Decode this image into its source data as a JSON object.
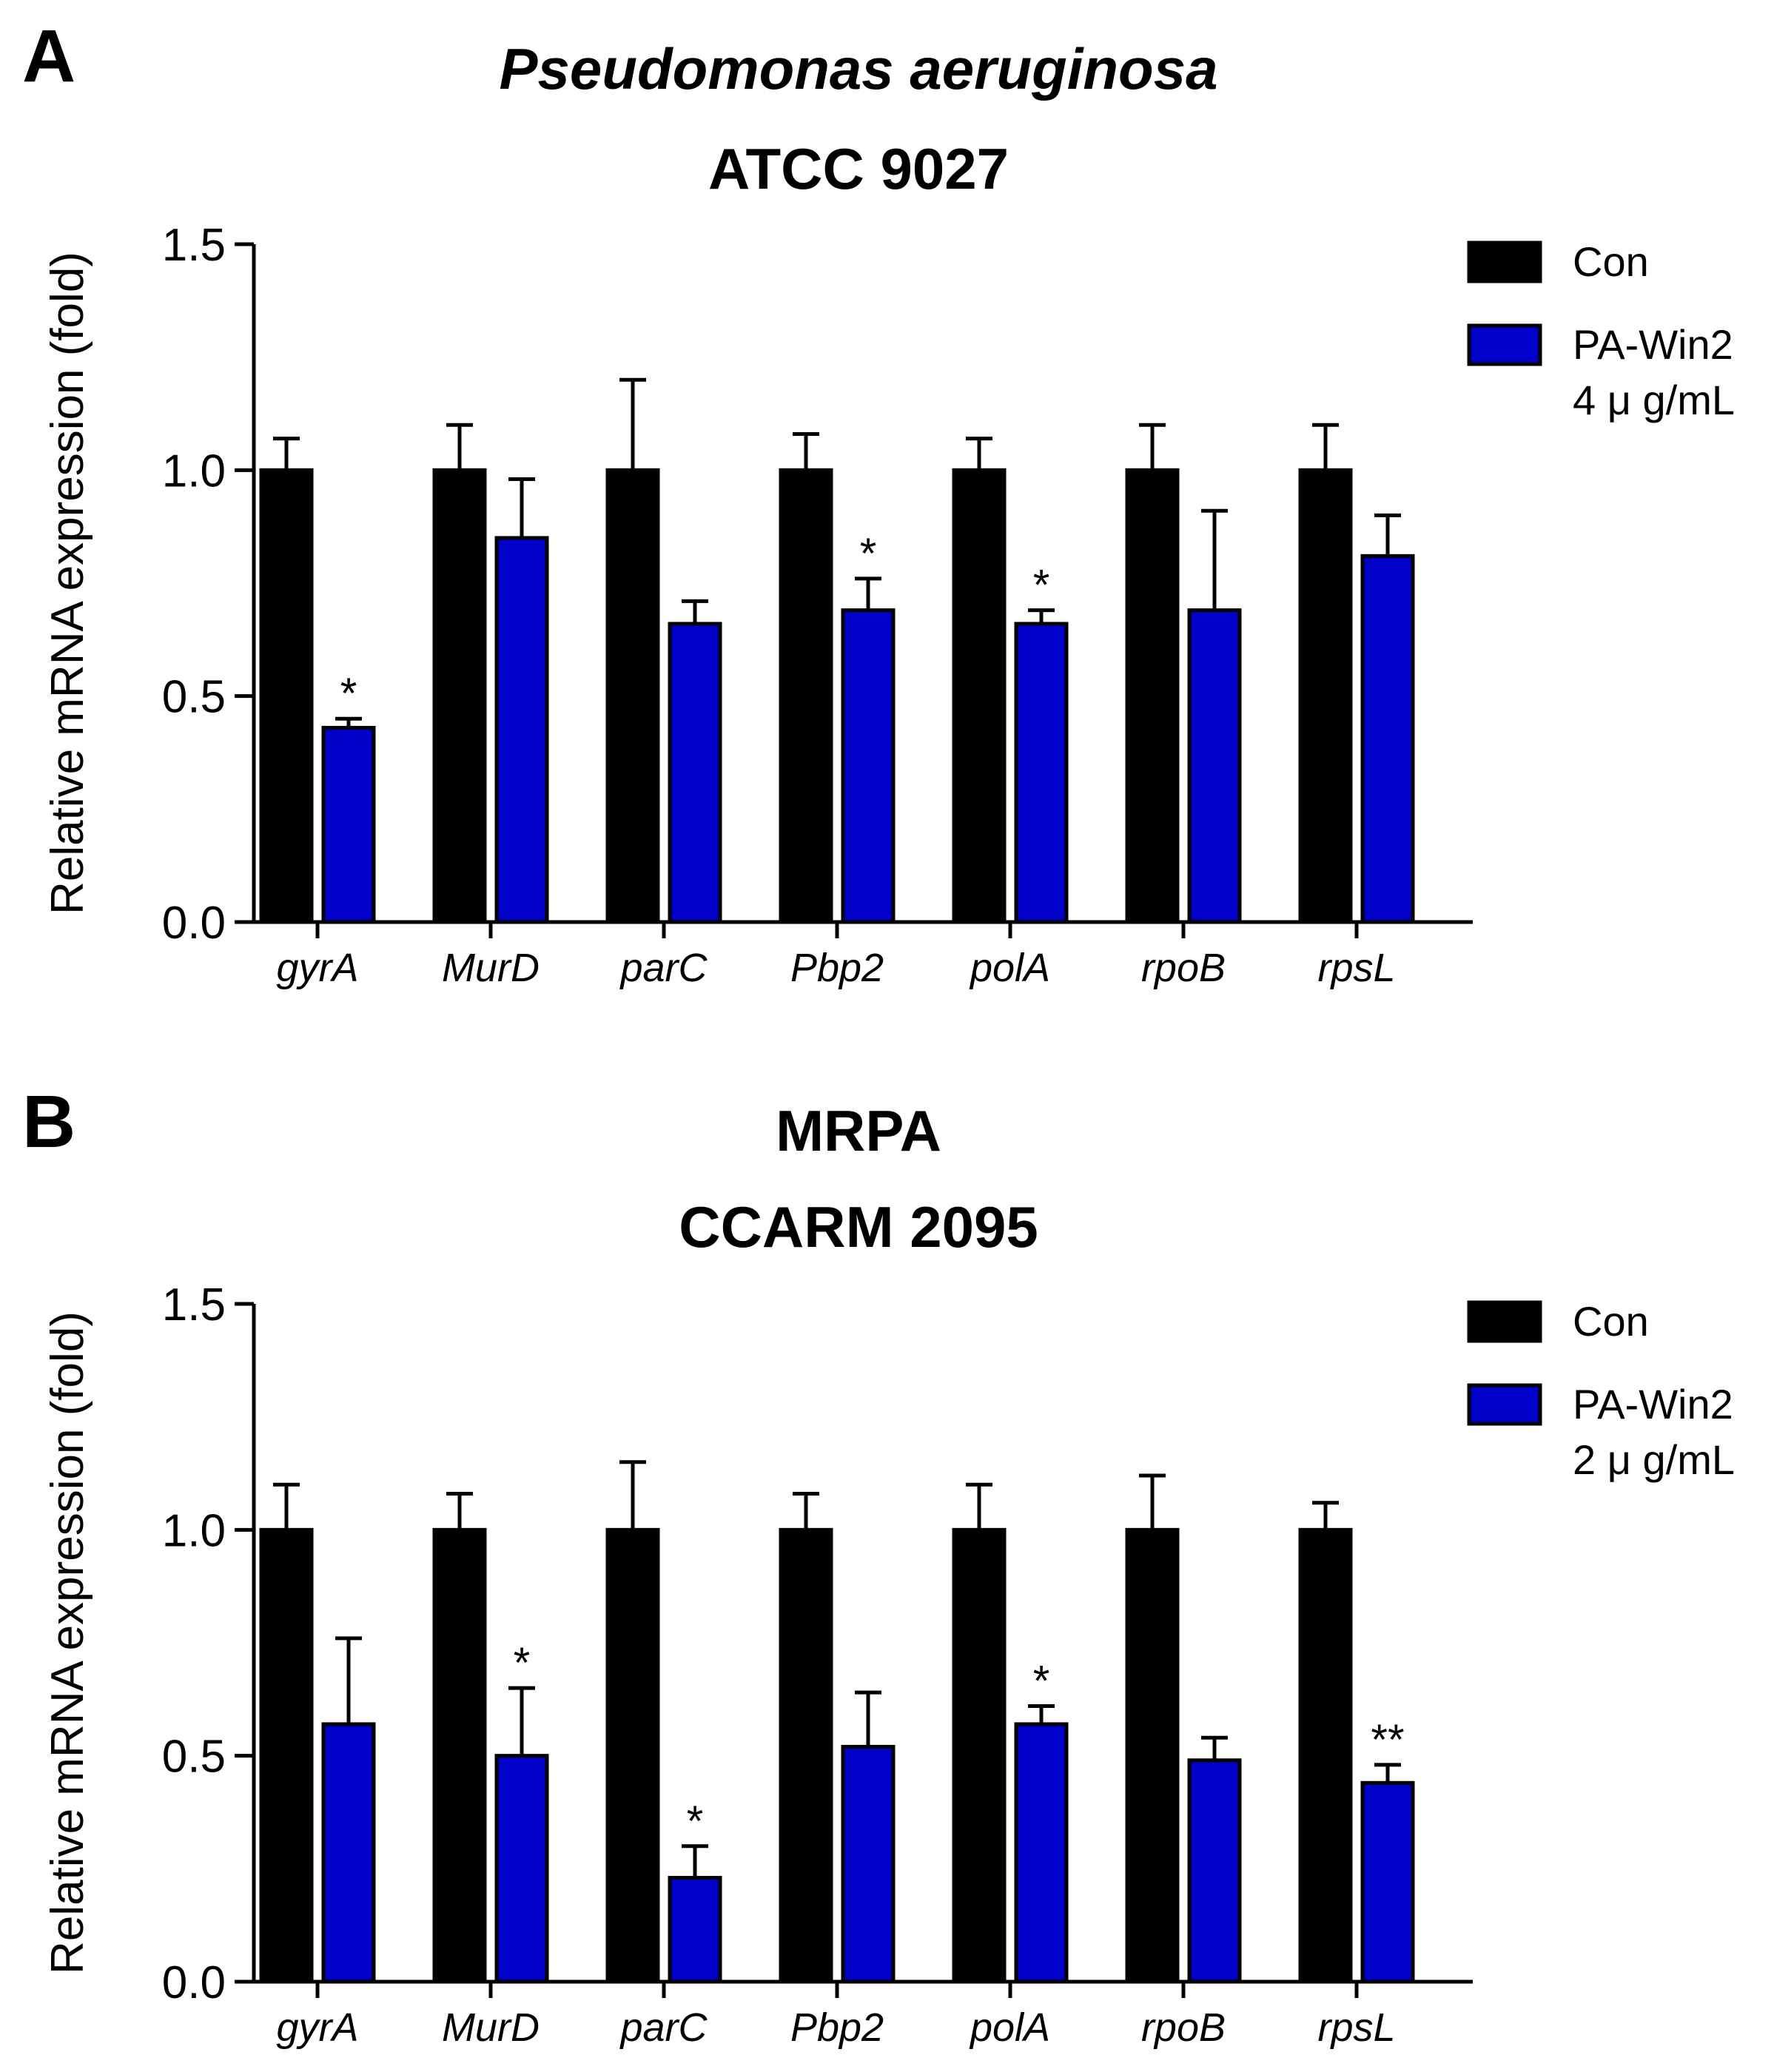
{
  "colors": {
    "con": "#000000",
    "treated": "#0000c8",
    "axis": "#000000"
  },
  "chart_data": [
    {
      "panel": "A",
      "type": "bar",
      "title_line1": "Pseudomonas aeruginosa",
      "title_line2": "ATCC 9027",
      "ylabel": "Relative mRNA expression (fold)",
      "xlabel": "",
      "ylim": [
        0,
        1.5
      ],
      "yticks": [
        "0.0",
        "0.5",
        "1.0",
        "1.5"
      ],
      "categories": [
        "gyrA",
        "MurD",
        "parC",
        "Pbp2",
        "polA",
        "rpoB",
        "rpsL"
      ],
      "series": [
        {
          "name": "Con",
          "values": [
            1.0,
            1.0,
            1.0,
            1.0,
            1.0,
            1.0,
            1.0
          ],
          "errors": [
            0.07,
            0.1,
            0.2,
            0.08,
            0.07,
            0.1,
            0.1
          ],
          "marks": [
            "",
            "",
            "",
            "",
            "",
            "",
            ""
          ]
        },
        {
          "name": "PA-Win2",
          "name_line2": "4 μ g/mL",
          "values": [
            0.43,
            0.85,
            0.66,
            0.69,
            0.66,
            0.69,
            0.81
          ],
          "errors": [
            0.02,
            0.13,
            0.05,
            0.07,
            0.03,
            0.22,
            0.09
          ],
          "marks": [
            "*",
            "",
            "",
            "*",
            "*",
            "",
            ""
          ]
        }
      ]
    },
    {
      "panel": "B",
      "type": "bar",
      "title_line1": "MRPA",
      "title_line2": "CCARM 2095",
      "ylabel": "Relative mRNA expression (fold)",
      "xlabel": "",
      "ylim": [
        0,
        1.5
      ],
      "yticks": [
        "0.0",
        "0.5",
        "1.0",
        "1.5"
      ],
      "categories": [
        "gyrA",
        "MurD",
        "parC",
        "Pbp2",
        "polA",
        "rpoB",
        "rpsL"
      ],
      "series": [
        {
          "name": "Con",
          "values": [
            1.0,
            1.0,
            1.0,
            1.0,
            1.0,
            1.0,
            1.0
          ],
          "errors": [
            0.1,
            0.08,
            0.15,
            0.08,
            0.1,
            0.12,
            0.06
          ],
          "marks": [
            "",
            "",
            "",
            "",
            "",
            "",
            ""
          ]
        },
        {
          "name": "PA-Win2",
          "name_line2": "2 μ g/mL",
          "values": [
            0.57,
            0.5,
            0.23,
            0.52,
            0.57,
            0.49,
            0.44
          ],
          "errors": [
            0.19,
            0.15,
            0.07,
            0.12,
            0.04,
            0.05,
            0.04
          ],
          "marks": [
            "",
            "*",
            "*",
            "",
            "*",
            "",
            "**"
          ]
        }
      ]
    }
  ]
}
